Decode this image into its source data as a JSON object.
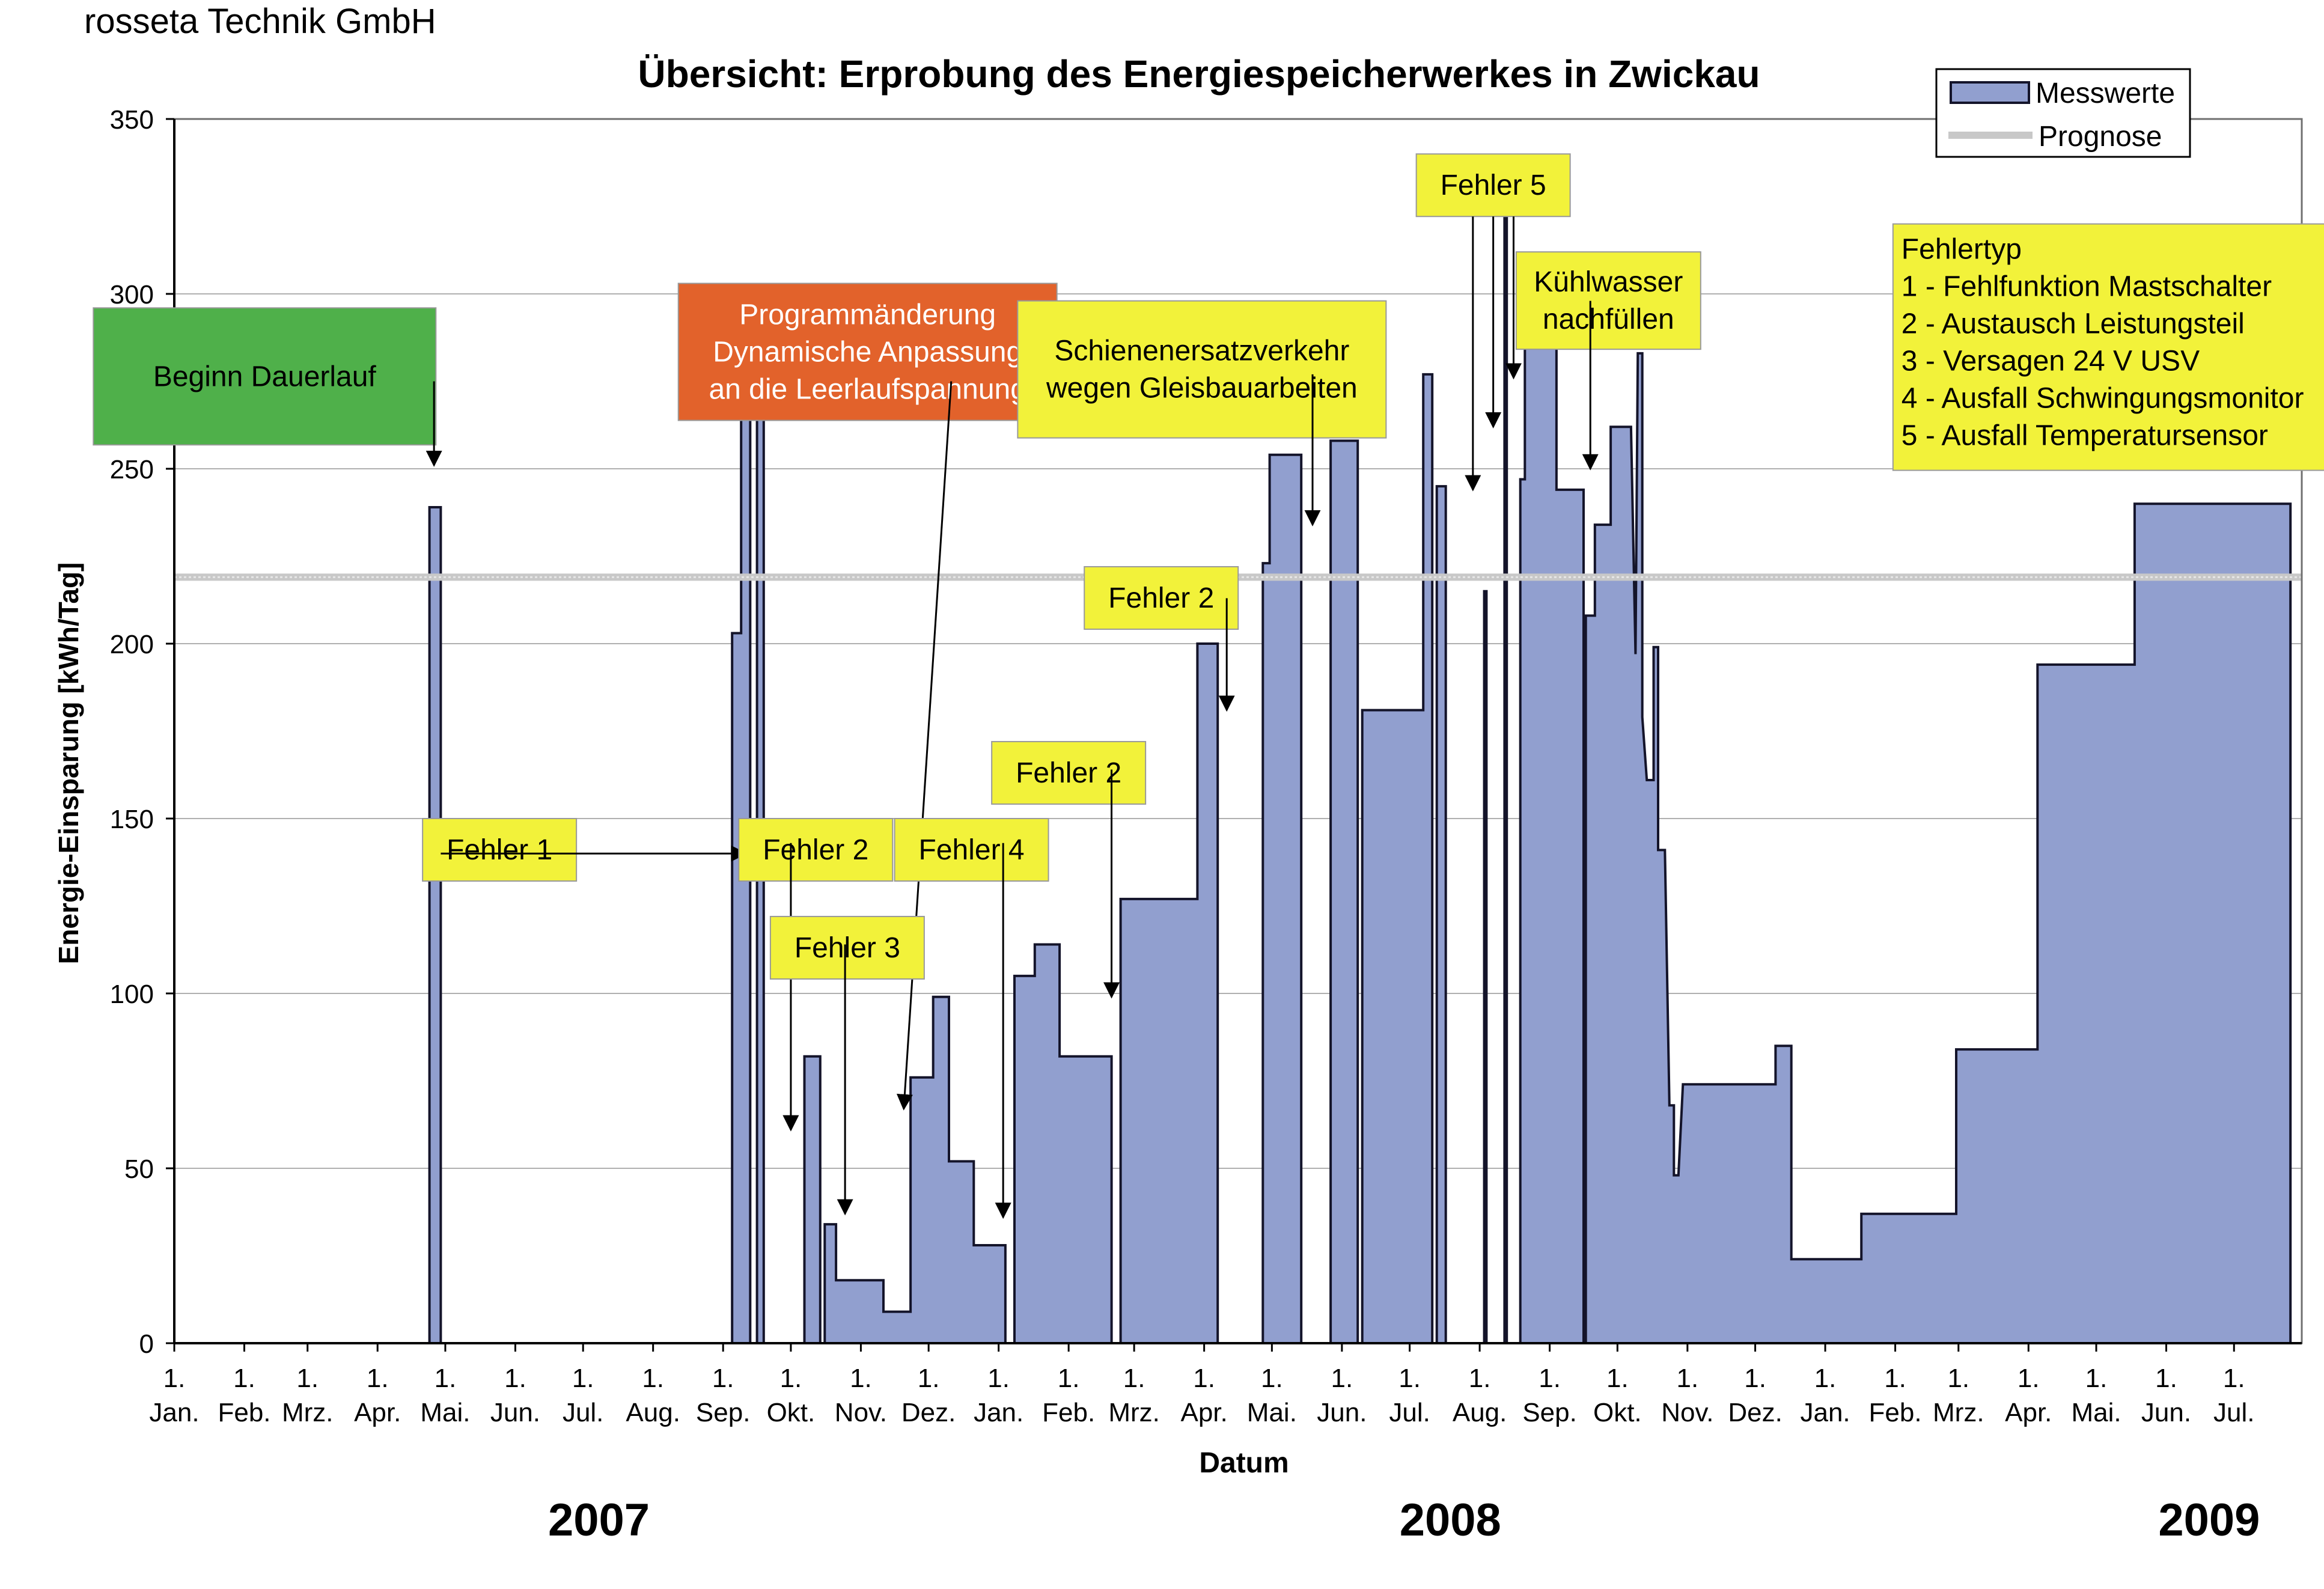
{
  "company": "rosseta Technik GmbH",
  "colors": {
    "fill": "#919fcf",
    "line": "#14142a",
    "prognose": "#c8c8c8",
    "grid": "#b0b0b0",
    "note_yellow": "#f2f23a",
    "note_green": "#4fb04a",
    "note_orange": "#e2622b"
  },
  "chart_data": {
    "type": "area",
    "title": "Übersicht: Erprobung des Energiespeicherwerkes in Zwickau",
    "xlabel": "Datum",
    "ylabel": "Energie-Einsparung [kWh/Tag]",
    "ylim": [
      0,
      350
    ],
    "y_ticks": [
      0,
      50,
      100,
      150,
      200,
      250,
      300,
      350
    ],
    "x_range": [
      "2007-01-01",
      "2009-07-31"
    ],
    "x_tick_labels": [
      {
        "date": "2007-01-01",
        "line1": "1.",
        "line2": "Jan."
      },
      {
        "date": "2007-02-01",
        "line1": "1.",
        "line2": "Feb."
      },
      {
        "date": "2007-03-01",
        "line1": "1.",
        "line2": "Mrz."
      },
      {
        "date": "2007-04-01",
        "line1": "1.",
        "line2": "Apr."
      },
      {
        "date": "2007-05-01",
        "line1": "1.",
        "line2": "Mai."
      },
      {
        "date": "2007-06-01",
        "line1": "1.",
        "line2": "Jun."
      },
      {
        "date": "2007-07-01",
        "line1": "1.",
        "line2": "Jul."
      },
      {
        "date": "2007-08-01",
        "line1": "1.",
        "line2": "Aug."
      },
      {
        "date": "2007-09-01",
        "line1": "1.",
        "line2": "Sep."
      },
      {
        "date": "2007-10-01",
        "line1": "1.",
        "line2": "Okt."
      },
      {
        "date": "2007-11-01",
        "line1": "1.",
        "line2": "Nov."
      },
      {
        "date": "2007-12-01",
        "line1": "1.",
        "line2": "Dez."
      },
      {
        "date": "2008-01-01",
        "line1": "1.",
        "line2": "Jan."
      },
      {
        "date": "2008-02-01",
        "line1": "1.",
        "line2": "Feb."
      },
      {
        "date": "2008-03-01",
        "line1": "1.",
        "line2": "Mrz."
      },
      {
        "date": "2008-04-01",
        "line1": "1.",
        "line2": "Apr."
      },
      {
        "date": "2008-05-01",
        "line1": "1.",
        "line2": "Mai."
      },
      {
        "date": "2008-06-01",
        "line1": "1.",
        "line2": "Jun."
      },
      {
        "date": "2008-07-01",
        "line1": "1.",
        "line2": "Jul."
      },
      {
        "date": "2008-08-01",
        "line1": "1.",
        "line2": "Aug."
      },
      {
        "date": "2008-09-01",
        "line1": "1.",
        "line2": "Sep."
      },
      {
        "date": "2008-10-01",
        "line1": "1.",
        "line2": "Okt."
      },
      {
        "date": "2008-11-01",
        "line1": "1.",
        "line2": "Nov."
      },
      {
        "date": "2008-12-01",
        "line1": "1.",
        "line2": "Dez."
      },
      {
        "date": "2009-01-01",
        "line1": "1.",
        "line2": "Jan."
      },
      {
        "date": "2009-02-01",
        "line1": "1.",
        "line2": "Feb."
      },
      {
        "date": "2009-03-01",
        "line1": "1.",
        "line2": "Mrz."
      },
      {
        "date": "2009-04-01",
        "line1": "1.",
        "line2": "Apr."
      },
      {
        "date": "2009-05-01",
        "line1": "1.",
        "line2": "Mai."
      },
      {
        "date": "2009-06-01",
        "line1": "1.",
        "line2": "Jun."
      },
      {
        "date": "2009-07-01",
        "line1": "1.",
        "line2": "Jul."
      }
    ],
    "years": [
      {
        "label": "2007",
        "date": "2007-07-08"
      },
      {
        "label": "2008",
        "date": "2008-07-19"
      },
      {
        "label": "2009",
        "date": "2009-06-20"
      }
    ],
    "legend": {
      "position": "top-right",
      "entries": [
        "Messwerte",
        "Prognose"
      ]
    },
    "grid": true,
    "series": [
      {
        "name": "Messwerte",
        "points": [
          [
            "2007-01-01",
            0
          ],
          [
            "2007-04-24",
            0
          ],
          [
            "2007-04-24",
            239
          ],
          [
            "2007-04-29",
            239
          ],
          [
            "2007-04-29",
            0
          ],
          [
            "2007-09-05",
            0
          ],
          [
            "2007-09-05",
            203
          ],
          [
            "2007-09-09",
            203
          ],
          [
            "2007-09-09",
            275
          ],
          [
            "2007-09-13",
            275
          ],
          [
            "2007-09-13",
            0
          ],
          [
            "2007-09-16",
            0
          ],
          [
            "2007-09-16",
            268
          ],
          [
            "2007-09-19",
            268
          ],
          [
            "2007-09-19",
            0
          ],
          [
            "2007-10-07",
            0
          ],
          [
            "2007-10-07",
            82
          ],
          [
            "2007-10-14",
            82
          ],
          [
            "2007-10-14",
            0
          ],
          [
            "2007-10-16",
            0
          ],
          [
            "2007-10-16",
            34
          ],
          [
            "2007-10-21",
            34
          ],
          [
            "2007-10-21",
            18
          ],
          [
            "2007-11-11",
            18
          ],
          [
            "2007-11-11",
            9
          ],
          [
            "2007-11-23",
            9
          ],
          [
            "2007-11-23",
            76
          ],
          [
            "2007-12-03",
            76
          ],
          [
            "2007-12-03",
            99
          ],
          [
            "2007-12-10",
            99
          ],
          [
            "2007-12-10",
            52
          ],
          [
            "2007-12-21",
            52
          ],
          [
            "2007-12-21",
            28
          ],
          [
            "2008-01-04",
            28
          ],
          [
            "2008-01-04",
            0
          ],
          [
            "2008-01-08",
            0
          ],
          [
            "2008-01-08",
            105
          ],
          [
            "2008-01-17",
            105
          ],
          [
            "2008-01-17",
            114
          ],
          [
            "2008-01-28",
            114
          ],
          [
            "2008-01-28",
            82
          ],
          [
            "2008-02-20",
            82
          ],
          [
            "2008-02-20",
            0
          ],
          [
            "2008-02-24",
            0
          ],
          [
            "2008-02-24",
            127
          ],
          [
            "2008-03-29",
            127
          ],
          [
            "2008-03-29",
            200
          ],
          [
            "2008-04-07",
            200
          ],
          [
            "2008-04-07",
            0
          ],
          [
            "2008-04-27",
            0
          ],
          [
            "2008-04-27",
            223
          ],
          [
            "2008-04-30",
            223
          ],
          [
            "2008-04-30",
            254
          ],
          [
            "2008-05-14",
            254
          ],
          [
            "2008-05-14",
            0
          ],
          [
            "2008-05-27",
            0
          ],
          [
            "2008-05-27",
            258
          ],
          [
            "2008-06-08",
            258
          ],
          [
            "2008-06-08",
            0
          ],
          [
            "2008-06-10",
            0
          ],
          [
            "2008-06-10",
            181
          ],
          [
            "2008-07-07",
            181
          ],
          [
            "2008-07-07",
            277
          ],
          [
            "2008-07-11",
            277
          ],
          [
            "2008-07-11",
            0
          ],
          [
            "2008-07-13",
            0
          ],
          [
            "2008-07-13",
            245
          ],
          [
            "2008-07-17",
            245
          ],
          [
            "2008-07-17",
            0
          ],
          [
            "2008-08-03",
            0
          ],
          [
            "2008-08-03",
            215
          ],
          [
            "2008-08-04",
            215
          ],
          [
            "2008-08-04",
            0
          ],
          [
            "2008-08-12",
            0
          ],
          [
            "2008-08-12",
            326
          ],
          [
            "2008-08-13",
            326
          ],
          [
            "2008-08-13",
            0
          ],
          [
            "2008-08-19",
            0
          ],
          [
            "2008-08-19",
            247
          ],
          [
            "2008-08-21",
            247
          ],
          [
            "2008-08-21",
            289
          ],
          [
            "2008-09-04",
            289
          ],
          [
            "2008-09-04",
            244
          ],
          [
            "2008-09-16",
            244
          ],
          [
            "2008-09-16",
            0
          ],
          [
            "2008-09-17",
            0
          ],
          [
            "2008-09-17",
            208
          ],
          [
            "2008-09-21",
            208
          ],
          [
            "2008-09-21",
            234
          ],
          [
            "2008-09-28",
            234
          ],
          [
            "2008-09-28",
            262
          ],
          [
            "2008-10-07",
            262
          ],
          [
            "2008-10-09",
            197
          ],
          [
            "2008-10-10",
            283
          ],
          [
            "2008-10-12",
            283
          ],
          [
            "2008-10-12",
            179
          ],
          [
            "2008-10-14",
            161
          ],
          [
            "2008-10-17",
            161
          ],
          [
            "2008-10-17",
            199
          ],
          [
            "2008-10-19",
            199
          ],
          [
            "2008-10-19",
            141
          ],
          [
            "2008-10-22",
            141
          ],
          [
            "2008-10-24",
            68
          ],
          [
            "2008-10-26",
            68
          ],
          [
            "2008-10-26",
            48
          ],
          [
            "2008-10-28",
            48
          ],
          [
            "2008-10-30",
            74
          ],
          [
            "2008-12-10",
            74
          ],
          [
            "2008-12-10",
            85
          ],
          [
            "2008-12-17",
            85
          ],
          [
            "2008-12-17",
            24
          ],
          [
            "2009-01-17",
            24
          ],
          [
            "2009-01-17",
            37
          ],
          [
            "2009-02-28",
            37
          ],
          [
            "2009-02-28",
            84
          ],
          [
            "2009-04-05",
            84
          ],
          [
            "2009-04-05",
            194
          ],
          [
            "2009-05-18",
            194
          ],
          [
            "2009-05-18",
            240
          ],
          [
            "2009-07-26",
            240
          ],
          [
            "2009-07-26",
            0
          ]
        ]
      },
      {
        "name": "Prognose",
        "value": 219
      }
    ],
    "annotations": [
      {
        "id": "beginn",
        "lines": [
          "Beginn Dauerlauf"
        ],
        "style": "green",
        "box_date": "2007-02-10",
        "box_y": 296,
        "arrow_from_date": "2007-04-26",
        "arrow_from_y": 275,
        "arrow_to_date": "2007-04-26",
        "arrow_to_y": 251
      },
      {
        "id": "fehler1",
        "lines": [
          "Fehler 1"
        ],
        "style": "yellow",
        "box_date": "2007-05-25",
        "box_y": 150,
        "arrow_from_date": "2007-04-29",
        "arrow_from_y": 140,
        "arrow_to_date": "2007-09-11",
        "arrow_to_y": 140
      },
      {
        "id": "programm",
        "lines": [
          "Programmänderung",
          "Dynamische Anpassung",
          "an die Leerlaufspannung"
        ],
        "style": "orange",
        "box_date": "2007-11-04",
        "box_y": 303,
        "arrow_from_date": "2007-12-11",
        "arrow_from_y": 275,
        "arrow_to_date": "2007-11-20",
        "arrow_to_y": 67
      },
      {
        "id": "fehler2a",
        "lines": [
          "Fehler 2"
        ],
        "style": "yellow",
        "box_date": "2007-10-12",
        "box_y": 150,
        "arrow_from_date": "2007-10-01",
        "arrow_from_y": 143,
        "arrow_to_date": "2007-10-01",
        "arrow_to_y": 61
      },
      {
        "id": "fehler3",
        "lines": [
          "Fehler 3"
        ],
        "style": "yellow",
        "box_date": "2007-10-26",
        "box_y": 122,
        "arrow_from_date": "2007-10-25",
        "arrow_from_y": 114,
        "arrow_to_date": "2007-10-25",
        "arrow_to_y": 37
      },
      {
        "id": "fehler4",
        "lines": [
          "Fehler 4"
        ],
        "style": "yellow",
        "box_date": "2007-12-20",
        "box_y": 150,
        "arrow_from_date": "2008-01-03",
        "arrow_from_y": 143,
        "arrow_to_date": "2008-01-03",
        "arrow_to_y": 36
      },
      {
        "id": "fehler2b",
        "lines": [
          "Fehler 2"
        ],
        "style": "yellow",
        "box_date": "2008-02-01",
        "box_y": 172,
        "arrow_from_date": "2008-02-20",
        "arrow_from_y": 164,
        "arrow_to_date": "2008-02-20",
        "arrow_to_y": 99
      },
      {
        "id": "schienen",
        "lines": [
          "Schienenersatzverkehr",
          "wegen Gleisbauarbeiten"
        ],
        "style": "yellow",
        "box_date": "2008-03-31",
        "box_y": 298,
        "arrow_from_date": "2008-05-19",
        "arrow_from_y": 277,
        "arrow_to_date": "2008-05-19",
        "arrow_to_y": 234
      },
      {
        "id": "fehler2c",
        "lines": [
          "Fehler 2"
        ],
        "style": "yellow",
        "box_date": "2008-03-13",
        "box_y": 222,
        "arrow_from_date": "2008-04-11",
        "arrow_from_y": 213,
        "arrow_to_date": "2008-04-11",
        "arrow_to_y": 181
      },
      {
        "id": "fehler5",
        "lines": [
          "Fehler 5"
        ],
        "style": "yellow",
        "box_date": "2008-08-07",
        "box_y": 340,
        "arrow_targets": [
          [
            "2008-07-29",
            244
          ],
          [
            "2008-08-07",
            262
          ],
          [
            "2008-08-16",
            276
          ]
        ]
      },
      {
        "id": "kuehl",
        "lines": [
          "Kühlwasser",
          "nachfüllen"
        ],
        "style": "yellow",
        "box_date": "2008-09-27",
        "box_y": 312,
        "arrow_from_date": "2008-09-19",
        "arrow_from_y": 298,
        "arrow_to_date": "2008-09-19",
        "arrow_to_y": 250
      },
      {
        "id": "fehlertyp",
        "lines": [
          "Fehlertyp",
          "1 - Fehlfunktion Mastschalter",
          "2 - Austausch Leistungsteil",
          "3 - Versagen 24 V USV",
          "4 - Ausfall Schwingungsmonitor",
          "5 - Ausfall Temperatursensor"
        ],
        "style": "yellow-left",
        "box_date": "2009-01-31",
        "box_y": 320
      }
    ]
  }
}
